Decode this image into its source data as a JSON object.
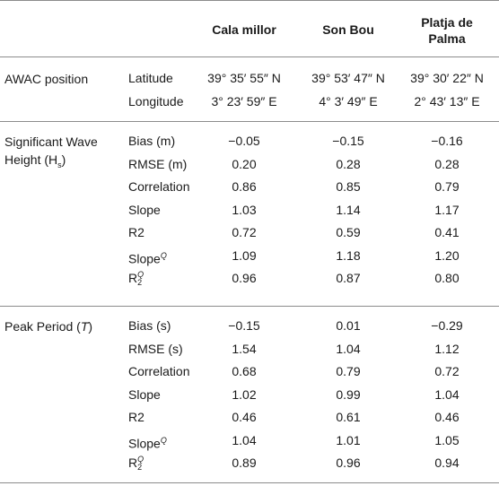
{
  "columns": [
    "Cala millor",
    "Son Bou",
    "Platja de Palma"
  ],
  "sections": [
    {
      "label": "AWAC position",
      "rows": [
        {
          "metric": "Latitude",
          "values": [
            "39° 35′ 55″ N",
            "39° 53′ 47″ N",
            "39° 30′ 22″ N"
          ]
        },
        {
          "metric": "Longitude",
          "values": [
            "3° 23′ 59″ E",
            "4° 3′ 49″ E",
            "2° 43′ 13″ E"
          ]
        }
      ]
    },
    {
      "label": "Significant Wave Height (Hs)",
      "rows": [
        {
          "metric": "Bias (m)",
          "values": [
            "−0.05",
            "−0.15",
            "−0.16"
          ]
        },
        {
          "metric": "RMSE (m)",
          "values": [
            "0.20",
            "0.28",
            "0.28"
          ]
        },
        {
          "metric": "Correlation",
          "values": [
            "0.86",
            "0.85",
            "0.79"
          ]
        },
        {
          "metric": "Slope",
          "values": [
            "1.03",
            "1.14",
            "1.17"
          ]
        },
        {
          "metric": "R2",
          "values": [
            "0.72",
            "0.59",
            "0.41"
          ]
        },
        {
          "metric": "SlopeQ",
          "values": [
            "1.09",
            "1.18",
            "1.20"
          ]
        },
        {
          "metric": "R2Q",
          "values": [
            "0.96",
            "0.87",
            "0.80"
          ]
        }
      ]
    },
    {
      "label": "Peak Period (T)",
      "rows": [
        {
          "metric": "Bias (s)",
          "values": [
            "−0.15",
            "0.01",
            "−0.29"
          ]
        },
        {
          "metric": "RMSE (s)",
          "values": [
            "1.54",
            "1.04",
            "1.12"
          ]
        },
        {
          "metric": "Correlation",
          "values": [
            "0.68",
            "0.79",
            "0.72"
          ]
        },
        {
          "metric": "Slope",
          "values": [
            "1.02",
            "0.99",
            "1.04"
          ]
        },
        {
          "metric": "R2",
          "values": [
            "0.46",
            "0.61",
            "0.46"
          ]
        },
        {
          "metric": "SlopeQ",
          "values": [
            "1.04",
            "1.01",
            "1.05"
          ]
        },
        {
          "metric": "R2Q",
          "values": [
            "0.89",
            "0.96",
            "0.94"
          ]
        }
      ]
    }
  ]
}
